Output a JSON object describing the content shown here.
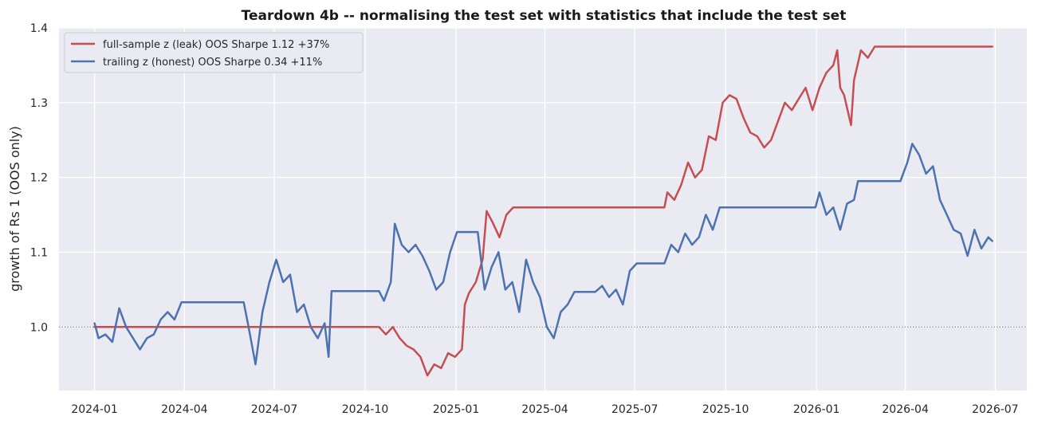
{
  "chart_data": {
    "type": "line",
    "title": "Teardown 4b -- normalising the test set with statistics that include the test set",
    "xlabel": "",
    "ylabel": "growth of Rs 1 (OOS only)",
    "x_ticks": [
      "2024-01",
      "2024-04",
      "2024-07",
      "2024-10",
      "2025-01",
      "2025-04",
      "2025-07",
      "2025-10",
      "2026-01",
      "2026-04",
      "2026-07"
    ],
    "y_ticks": [
      "1.0",
      "1.1",
      "1.2",
      "1.3",
      "1.4"
    ],
    "xlim": [
      "2023-11-26",
      "2026-08-02"
    ],
    "ylim": [
      0.915,
      1.4
    ],
    "reference_line": 1.0,
    "grid": true,
    "legend_position": "top-left",
    "series": [
      {
        "name": "full-sample z (leak)   OOS Sharpe 1.12   +37%",
        "color": "#c44e52",
        "points": [
          [
            "2024-01-01",
            1.0
          ],
          [
            "2024-10-15",
            1.0
          ],
          [
            "2024-10-22",
            0.99
          ],
          [
            "2024-10-29",
            1.0
          ],
          [
            "2024-11-05",
            0.985
          ],
          [
            "2024-11-12",
            0.975
          ],
          [
            "2024-11-19",
            0.97
          ],
          [
            "2024-11-26",
            0.96
          ],
          [
            "2024-12-03",
            0.935
          ],
          [
            "2024-12-10",
            0.95
          ],
          [
            "2024-12-17",
            0.945
          ],
          [
            "2024-12-24",
            0.965
          ],
          [
            "2024-12-31",
            0.96
          ],
          [
            "2025-01-07",
            0.97
          ],
          [
            "2025-01-10",
            1.03
          ],
          [
            "2025-01-14",
            1.045
          ],
          [
            "2025-01-21",
            1.06
          ],
          [
            "2025-01-28",
            1.09
          ],
          [
            "2025-02-01",
            1.155
          ],
          [
            "2025-02-07",
            1.14
          ],
          [
            "2025-02-14",
            1.12
          ],
          [
            "2025-02-21",
            1.15
          ],
          [
            "2025-02-28",
            1.16
          ],
          [
            "2025-07-31",
            1.16
          ],
          [
            "2025-08-03",
            1.18
          ],
          [
            "2025-08-10",
            1.17
          ],
          [
            "2025-08-17",
            1.19
          ],
          [
            "2025-08-24",
            1.22
          ],
          [
            "2025-08-31",
            1.2
          ],
          [
            "2025-09-07",
            1.21
          ],
          [
            "2025-09-14",
            1.255
          ],
          [
            "2025-09-21",
            1.25
          ],
          [
            "2025-09-28",
            1.3
          ],
          [
            "2025-10-05",
            1.31
          ],
          [
            "2025-10-12",
            1.305
          ],
          [
            "2025-10-19",
            1.28
          ],
          [
            "2025-10-26",
            1.26
          ],
          [
            "2025-11-02",
            1.255
          ],
          [
            "2025-11-09",
            1.24
          ],
          [
            "2025-11-16",
            1.25
          ],
          [
            "2025-11-23",
            1.275
          ],
          [
            "2025-11-30",
            1.3
          ],
          [
            "2025-12-07",
            1.29
          ],
          [
            "2025-12-14",
            1.305
          ],
          [
            "2025-12-21",
            1.32
          ],
          [
            "2025-12-28",
            1.29
          ],
          [
            "2026-01-04",
            1.32
          ],
          [
            "2026-01-11",
            1.34
          ],
          [
            "2026-01-18",
            1.35
          ],
          [
            "2026-01-22",
            1.37
          ],
          [
            "2026-01-25",
            1.32
          ],
          [
            "2026-01-29",
            1.31
          ],
          [
            "2026-02-05",
            1.27
          ],
          [
            "2026-02-08",
            1.33
          ],
          [
            "2026-02-15",
            1.37
          ],
          [
            "2026-02-22",
            1.36
          ],
          [
            "2026-03-01",
            1.375
          ],
          [
            "2026-06-28",
            1.375
          ]
        ]
      },
      {
        "name": "trailing z (honest)   OOS Sharpe 0.34   +11%",
        "color": "#4c72b0",
        "points": [
          [
            "2024-01-01",
            1.005
          ],
          [
            "2024-01-05",
            0.985
          ],
          [
            "2024-01-12",
            0.99
          ],
          [
            "2024-01-19",
            0.98
          ],
          [
            "2024-01-26",
            1.025
          ],
          [
            "2024-02-02",
            1.0
          ],
          [
            "2024-02-09",
            0.985
          ],
          [
            "2024-02-16",
            0.97
          ],
          [
            "2024-02-23",
            0.985
          ],
          [
            "2024-03-01",
            0.99
          ],
          [
            "2024-03-08",
            1.01
          ],
          [
            "2024-03-15",
            1.02
          ],
          [
            "2024-03-22",
            1.01
          ],
          [
            "2024-03-29",
            1.033
          ],
          [
            "2024-05-31",
            1.033
          ],
          [
            "2024-06-05",
            1.0
          ],
          [
            "2024-06-12",
            0.95
          ],
          [
            "2024-06-19",
            1.02
          ],
          [
            "2024-06-26",
            1.06
          ],
          [
            "2024-07-03",
            1.09
          ],
          [
            "2024-07-10",
            1.06
          ],
          [
            "2024-07-17",
            1.07
          ],
          [
            "2024-07-24",
            1.02
          ],
          [
            "2024-07-31",
            1.03
          ],
          [
            "2024-08-07",
            1.0
          ],
          [
            "2024-08-14",
            0.985
          ],
          [
            "2024-08-21",
            1.005
          ],
          [
            "2024-08-25",
            0.96
          ],
          [
            "2024-08-28",
            1.048
          ],
          [
            "2024-10-15",
            1.048
          ],
          [
            "2024-10-20",
            1.035
          ],
          [
            "2024-10-27",
            1.06
          ],
          [
            "2024-10-31",
            1.138
          ],
          [
            "2024-11-07",
            1.11
          ],
          [
            "2024-11-14",
            1.1
          ],
          [
            "2024-11-21",
            1.11
          ],
          [
            "2024-11-28",
            1.095
          ],
          [
            "2024-12-05",
            1.075
          ],
          [
            "2024-12-12",
            1.05
          ],
          [
            "2024-12-19",
            1.06
          ],
          [
            "2024-12-26",
            1.1
          ],
          [
            "2025-01-02",
            1.127
          ],
          [
            "2025-01-23",
            1.127
          ],
          [
            "2025-01-30",
            1.05
          ],
          [
            "2025-02-06",
            1.08
          ],
          [
            "2025-02-13",
            1.1
          ],
          [
            "2025-02-20",
            1.05
          ],
          [
            "2025-02-27",
            1.06
          ],
          [
            "2025-03-06",
            1.02
          ],
          [
            "2025-03-13",
            1.09
          ],
          [
            "2025-03-20",
            1.06
          ],
          [
            "2025-03-27",
            1.04
          ],
          [
            "2025-04-03",
            1.0
          ],
          [
            "2025-04-10",
            0.985
          ],
          [
            "2025-04-17",
            1.02
          ],
          [
            "2025-04-24",
            1.03
          ],
          [
            "2025-05-01",
            1.047
          ],
          [
            "2025-05-22",
            1.047
          ],
          [
            "2025-05-29",
            1.055
          ],
          [
            "2025-06-05",
            1.04
          ],
          [
            "2025-06-12",
            1.05
          ],
          [
            "2025-06-19",
            1.03
          ],
          [
            "2025-06-26",
            1.075
          ],
          [
            "2025-07-03",
            1.085
          ],
          [
            "2025-07-31",
            1.085
          ],
          [
            "2025-08-07",
            1.11
          ],
          [
            "2025-08-14",
            1.1
          ],
          [
            "2025-08-21",
            1.125
          ],
          [
            "2025-08-28",
            1.11
          ],
          [
            "2025-09-04",
            1.12
          ],
          [
            "2025-09-11",
            1.15
          ],
          [
            "2025-09-18",
            1.13
          ],
          [
            "2025-09-25",
            1.16
          ],
          [
            "2025-12-31",
            1.16
          ],
          [
            "2026-01-04",
            1.18
          ],
          [
            "2026-01-11",
            1.15
          ],
          [
            "2026-01-18",
            1.16
          ],
          [
            "2026-01-25",
            1.13
          ],
          [
            "2026-02-01",
            1.165
          ],
          [
            "2026-02-08",
            1.17
          ],
          [
            "2026-02-12",
            1.195
          ],
          [
            "2026-03-27",
            1.195
          ],
          [
            "2026-04-03",
            1.22
          ],
          [
            "2026-04-08",
            1.245
          ],
          [
            "2026-04-15",
            1.23
          ],
          [
            "2026-04-22",
            1.205
          ],
          [
            "2026-04-29",
            1.215
          ],
          [
            "2026-05-06",
            1.17
          ],
          [
            "2026-05-13",
            1.15
          ],
          [
            "2026-05-20",
            1.13
          ],
          [
            "2026-05-27",
            1.125
          ],
          [
            "2026-06-03",
            1.095
          ],
          [
            "2026-06-10",
            1.13
          ],
          [
            "2026-06-17",
            1.105
          ],
          [
            "2026-06-24",
            1.12
          ],
          [
            "2026-06-28",
            1.115
          ]
        ]
      }
    ]
  }
}
